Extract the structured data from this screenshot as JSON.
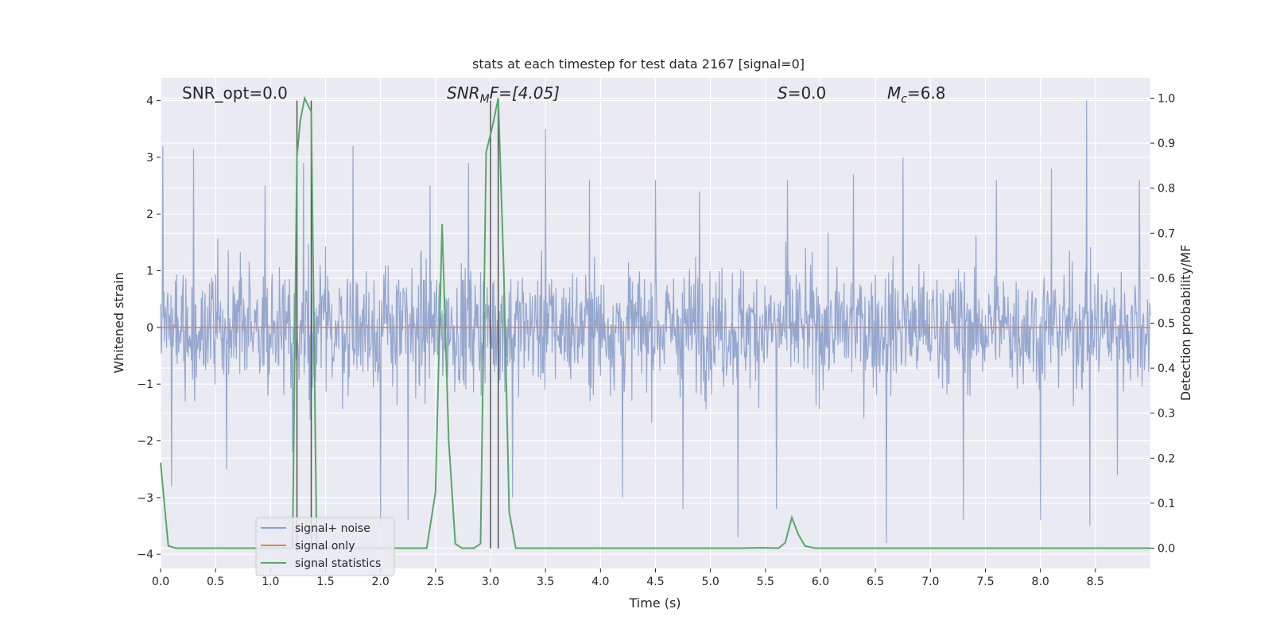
{
  "chart_data": {
    "type": "line",
    "title": "stats at each timestep for test data 2167 [signal=0]",
    "xlabel": "Time (s)",
    "ylabel": "Whitened strain",
    "ylabel_right": "Detection probability/MF",
    "xlim": [
      0,
      9.0
    ],
    "ylim": [
      -4.25,
      4.4
    ],
    "ylim_right": [
      -0.045,
      1.045
    ],
    "x_ticks": [
      "0.0",
      "0.5",
      "1.0",
      "1.5",
      "2.0",
      "2.5",
      "3.0",
      "3.5",
      "4.0",
      "4.5",
      "5.0",
      "5.5",
      "6.0",
      "6.5",
      "7.0",
      "7.5",
      "8.0",
      "8.5"
    ],
    "y_ticks": [
      "−4",
      "−3",
      "−2",
      "−1",
      "0",
      "1",
      "2",
      "3",
      "4"
    ],
    "y_ticks_right": [
      "0.0",
      "0.1",
      "0.2",
      "0.3",
      "0.4",
      "0.5",
      "0.6",
      "0.7",
      "0.8",
      "0.9",
      "1.0"
    ],
    "grid": true,
    "legend_position": "lower-left",
    "colors": {
      "noise": "#8da0cb",
      "signal_only": "#dd8452",
      "stats": "#55a868",
      "markers": "#555555",
      "background": "#eaeaf2"
    },
    "annotations": {
      "snr_opt": "SNR_opt=0.0",
      "snr_mf": "SNR",
      "snr_mf_sub": "M",
      "snr_mf_rest": "F=[4.05]",
      "s": "S",
      "s_rest": "=0.0",
      "mc": "M",
      "mc_sub": "c",
      "mc_rest": "=6.8"
    },
    "vertical_markers": [
      1.24,
      1.37,
      3.0,
      3.07
    ],
    "series": [
      {
        "name": "signal+ noise",
        "axis": "left",
        "description_values": "whitened strain noise, roughly symmetric, spanning about -3.8 to 4.0",
        "envelope_peaks": [
          [
            0.02,
            3.2
          ],
          [
            0.3,
            3.15
          ],
          [
            0.95,
            2.5
          ],
          [
            1.3,
            2.9
          ],
          [
            1.75,
            3.2
          ],
          [
            2.45,
            2.5
          ],
          [
            2.8,
            2.9
          ],
          [
            3.5,
            3.5
          ],
          [
            3.9,
            2.6
          ],
          [
            4.5,
            2.6
          ],
          [
            4.9,
            2.4
          ],
          [
            5.7,
            2.6
          ],
          [
            6.3,
            2.7
          ],
          [
            6.75,
            3.0
          ],
          [
            7.6,
            2.6
          ],
          [
            8.1,
            2.8
          ],
          [
            8.42,
            4.0
          ],
          [
            8.9,
            2.6
          ]
        ],
        "envelope_troughs": [
          [
            0.1,
            -2.8
          ],
          [
            0.6,
            -2.5
          ],
          [
            1.2,
            -2.2
          ],
          [
            2.0,
            -3.5
          ],
          [
            2.25,
            -3.4
          ],
          [
            3.2,
            -3.0
          ],
          [
            4.2,
            -3.0
          ],
          [
            4.75,
            -3.2
          ],
          [
            5.25,
            -3.7
          ],
          [
            5.6,
            -3.2
          ],
          [
            6.6,
            -3.8
          ],
          [
            7.3,
            -3.4
          ],
          [
            8.0,
            -3.4
          ],
          [
            8.45,
            -3.5
          ],
          [
            8.7,
            -2.6
          ]
        ]
      },
      {
        "name": "signal only",
        "axis": "left",
        "x": [
          0,
          9.0
        ],
        "y": [
          0,
          0
        ]
      },
      {
        "name": "signal statistics",
        "axis": "right",
        "x": [
          0,
          0.07,
          0.14,
          1.14,
          1.2,
          1.24,
          1.27,
          1.31,
          1.37,
          1.42,
          1.47,
          2.42,
          2.5,
          2.56,
          2.62,
          2.68,
          2.74,
          2.85,
          2.91,
          2.96,
          3.02,
          3.07,
          3.12,
          3.17,
          3.23,
          5.3,
          5.45,
          5.62,
          5.68,
          5.74,
          5.8,
          5.86,
          5.95,
          9.0
        ],
        "y": [
          0.19,
          0.005,
          0.0,
          0.0,
          0.0,
          0.87,
          0.95,
          1.0,
          0.97,
          0.0,
          0.0,
          0.0,
          0.125,
          0.72,
          0.24,
          0.01,
          0.0,
          0.0,
          0.01,
          0.88,
          0.94,
          1.0,
          0.62,
          0.08,
          0.0,
          0.0,
          0.001,
          0.0,
          0.012,
          0.068,
          0.03,
          0.005,
          0.0,
          0.0
        ]
      }
    ]
  }
}
